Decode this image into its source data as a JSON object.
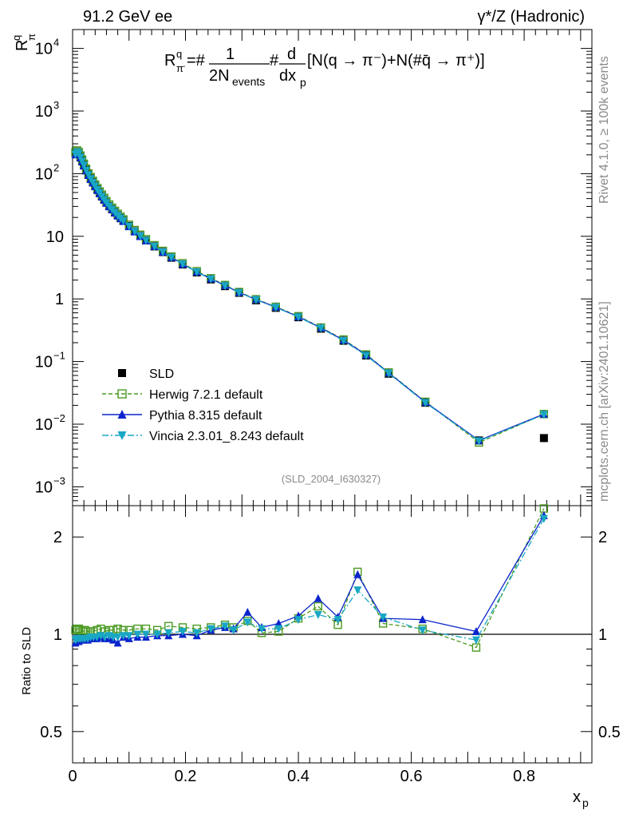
{
  "header": {
    "left_label": "91.2 GeV ee",
    "right_label": "γ*/Z (Hadronic)"
  },
  "side_labels": {
    "rivet": "Rivet 4.1.0, ≥ 100k events",
    "mcplots": "mcplots.cern.ch [arXiv:2401.10621]"
  },
  "watermark": "(SLD_2004_I630327)",
  "formula": {
    "lhs": "R",
    "lhs_sup": "q",
    "lhs_sub": "π",
    "lhs_subsup": "-",
    "eq_hash": "=#",
    "num1": "1",
    "den1": "2N",
    "den1_sub": "events",
    "hash2": "#",
    "num2": "d",
    "den2": "dx",
    "den2_sub": "p",
    "bracket": "[N(q → π⁻)+N(#q̄ → π⁺)]"
  },
  "chart_data": [
    {
      "type": "scatter",
      "panel": "main",
      "yscale": "log",
      "xlim": [
        0,
        0.92
      ],
      "ylim": [
        0.0005,
        20000
      ],
      "ylabel": "R",
      "ylabel_sup": "q",
      "ylabel_sub": "π",
      "ytick_labels": [
        {
          "value": 0.001,
          "base": "10",
          "exp": "−3"
        },
        {
          "value": 0.01,
          "base": "10",
          "exp": "−2"
        },
        {
          "value": 0.1,
          "base": "10",
          "exp": "−1"
        },
        {
          "value": 1,
          "base": "1",
          "exp": ""
        },
        {
          "value": 10,
          "base": "10",
          "exp": ""
        },
        {
          "value": 100,
          "base": "10",
          "exp": "2"
        },
        {
          "value": 1000,
          "base": "10",
          "exp": "3"
        },
        {
          "value": 10000,
          "base": "10",
          "exp": "4"
        }
      ],
      "x": [
        0.005,
        0.008,
        0.011,
        0.014,
        0.017,
        0.02,
        0.024,
        0.028,
        0.032,
        0.036,
        0.04,
        0.044,
        0.048,
        0.052,
        0.056,
        0.06,
        0.065,
        0.07,
        0.075,
        0.08,
        0.085,
        0.09,
        0.1,
        0.11,
        0.12,
        0.13,
        0.145,
        0.16,
        0.175,
        0.195,
        0.22,
        0.245,
        0.27,
        0.295,
        0.325,
        0.36,
        0.4,
        0.44,
        0.48,
        0.52,
        0.56,
        0.625,
        0.72,
        0.835
      ],
      "series": [
        {
          "name": "SLD",
          "color": "#000000",
          "marker": "square-filled",
          "values": [
            215,
            225,
            210,
            185,
            160,
            138,
            115,
            97,
            84,
            73,
            64,
            56,
            49.5,
            43.8,
            38.8,
            34.6,
            30.5,
            27.2,
            24.3,
            21.7,
            19.6,
            17.7,
            14.6,
            12.0,
            10.1,
            8.6,
            6.9,
            5.6,
            4.55,
            3.55,
            2.65,
            2.05,
            1.6,
            1.25,
            0.95,
            0.72,
            0.51,
            0.335,
            0.215,
            0.125,
            0.064,
            0.022,
            0.0055,
            0.006
          ]
        },
        {
          "name": "Herwig 7.2.1 default",
          "color": "#4a9a22",
          "marker": "square-open",
          "line": "dashed",
          "values": [
            220,
            235,
            222,
            195,
            168,
            144,
            120,
            101,
            88,
            77,
            67,
            59,
            52,
            46.3,
            41.0,
            36.5,
            32.2,
            28.6,
            25.5,
            22.9,
            20.6,
            18.6,
            15.3,
            12.6,
            10.6,
            9.0,
            7.2,
            5.85,
            4.75,
            3.72,
            2.78,
            2.14,
            1.67,
            1.29,
            0.99,
            0.75,
            0.53,
            0.35,
            0.225,
            0.13,
            0.067,
            0.0228,
            0.0051,
            0.0145
          ]
        },
        {
          "name": "Pythia 8.315 default",
          "color": "#0b24cc",
          "marker": "triangle-up",
          "line": "solid",
          "values": [
            200,
            215,
            202,
            178,
            155,
            133,
            111,
            94,
            81,
            71,
            62,
            54,
            48,
            42.5,
            37.7,
            33.7,
            29.7,
            26.5,
            23.6,
            21.1,
            19.1,
            17.3,
            14.3,
            11.8,
            9.95,
            8.5,
            6.9,
            5.6,
            4.6,
            3.6,
            2.7,
            2.1,
            1.64,
            1.27,
            0.98,
            0.74,
            0.52,
            0.345,
            0.22,
            0.128,
            0.066,
            0.0225,
            0.0055,
            0.0145
          ]
        },
        {
          "name": "Vincia 2.3.01_8.243 default",
          "color": "#19a7c4",
          "marker": "triangle-down",
          "line": "dashdot",
          "values": [
            205,
            222,
            210,
            183,
            158,
            136,
            113,
            96,
            83,
            72.5,
            63.5,
            55.5,
            49.2,
            43.5,
            38.6,
            34.4,
            30.4,
            27.0,
            24.1,
            21.6,
            19.5,
            17.6,
            14.5,
            12.0,
            10.1,
            8.6,
            6.9,
            5.6,
            4.6,
            3.6,
            2.68,
            2.07,
            1.62,
            1.26,
            0.97,
            0.73,
            0.515,
            0.34,
            0.215,
            0.125,
            0.065,
            0.022,
            0.0054,
            0.0142
          ]
        }
      ]
    },
    {
      "type": "scatter",
      "panel": "ratio",
      "ylabel": "Ratio to SLD",
      "xlabel": "x",
      "xlabel_sub": "p",
      "xlim": [
        0,
        0.92
      ],
      "ylim": [
        0.4,
        2.5
      ],
      "ytick_labels": [
        {
          "value": 0.5,
          "label": "0.5"
        },
        {
          "value": 1,
          "label": "1"
        },
        {
          "value": 2,
          "label": "2"
        }
      ],
      "xtick_labels": [
        {
          "value": 0,
          "label": "0"
        },
        {
          "value": 0.2,
          "label": "0.2"
        },
        {
          "value": 0.4,
          "label": "0.4"
        },
        {
          "value": 0.6,
          "label": "0.6"
        },
        {
          "value": 0.8,
          "label": "0.8"
        }
      ],
      "x": [
        0.005,
        0.008,
        0.011,
        0.014,
        0.018,
        0.022,
        0.027,
        0.032,
        0.037,
        0.043,
        0.05,
        0.057,
        0.065,
        0.072,
        0.08,
        0.09,
        0.1,
        0.115,
        0.13,
        0.15,
        0.17,
        0.195,
        0.22,
        0.245,
        0.27,
        0.285,
        0.31,
        0.335,
        0.365,
        0.4,
        0.435,
        0.47,
        0.505,
        0.55,
        0.62,
        0.715,
        0.835
      ],
      "series": [
        {
          "name": "Herwig 7.2.1 default",
          "color": "#4a9a22",
          "marker": "square-open",
          "line": "dashed",
          "values": [
            1.03,
            1.04,
            1.04,
            1.03,
            1.02,
            1.03,
            1.02,
            1.02,
            1.02,
            1.03,
            1.04,
            1.02,
            1.03,
            1.03,
            1.04,
            1.03,
            1.03,
            1.04,
            1.04,
            1.03,
            1.06,
            1.05,
            1.04,
            1.05,
            1.07,
            1.05,
            1.1,
            1.01,
            1.02,
            1.12,
            1.22,
            1.07,
            1.56,
            1.08,
            1.04,
            0.91,
            2.45
          ]
        },
        {
          "name": "Pythia 8.315 default",
          "color": "#0b24cc",
          "marker": "triangle-up",
          "line": "solid",
          "values": [
            0.94,
            0.95,
            0.95,
            0.96,
            0.96,
            0.96,
            0.96,
            0.97,
            0.97,
            0.97,
            0.98,
            0.97,
            0.97,
            0.96,
            0.94,
            0.98,
            0.97,
            0.98,
            0.98,
            0.99,
            0.99,
            1.0,
            0.99,
            1.03,
            1.05,
            1.04,
            1.17,
            1.05,
            1.08,
            1.14,
            1.29,
            1.13,
            1.53,
            1.12,
            1.11,
            1.02,
            2.33
          ]
        },
        {
          "name": "Vincia 2.3.01_8.243 default",
          "color": "#19a7c4",
          "marker": "triangle-down",
          "line": "dashdot",
          "values": [
            0.96,
            0.97,
            0.97,
            0.97,
            0.97,
            0.97,
            0.97,
            0.98,
            0.98,
            0.98,
            0.99,
            0.98,
            0.99,
            0.98,
            0.98,
            0.99,
            0.99,
            1.0,
            1.0,
            1.0,
            1.01,
            1.02,
            1.01,
            1.04,
            1.06,
            1.03,
            1.09,
            1.04,
            1.04,
            1.11,
            1.15,
            1.11,
            1.37,
            1.13,
            1.03,
            0.96,
            2.28
          ]
        }
      ]
    }
  ],
  "legend": {
    "placement": "lower-left",
    "entries": [
      {
        "name": "SLD",
        "marker": "square-filled",
        "color": "#000000",
        "line": "none"
      },
      {
        "name": "Herwig 7.2.1 default",
        "marker": "square-open",
        "color": "#4a9a22",
        "line": "dashed"
      },
      {
        "name": "Pythia 8.315 default",
        "marker": "triangle-up",
        "color": "#0b24cc",
        "line": "solid"
      },
      {
        "name": "Vincia 2.3.01_8.243 default",
        "marker": "triangle-down",
        "color": "#19a7c4",
        "line": "dashdot"
      }
    ]
  }
}
